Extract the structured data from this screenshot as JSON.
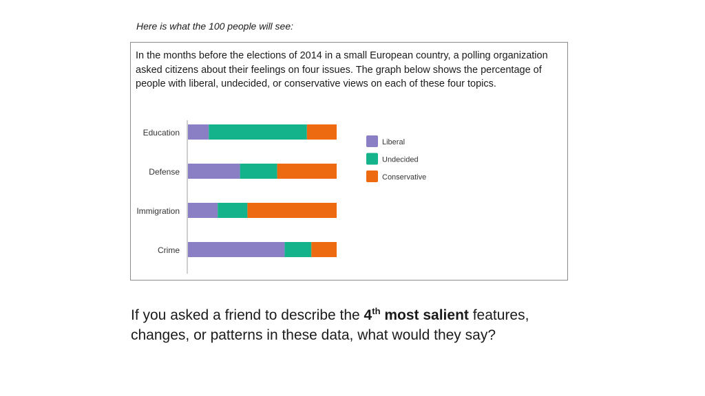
{
  "intro_text": "Here is what the 100 people will see:",
  "description": "In the months before the elections of 2014 in a small European country, a polling organization asked citizens about their feelings on four issues. The graph below shows the percentage of people with liberal, undecided, or conservative views on each of these four topics.",
  "question": {
    "prefix": "If you asked a friend to describe the ",
    "ordinal": "4",
    "ordinal_sup": "th",
    "emphasis": " most salient",
    "suffix": " features, changes, or patterns in these data, what would they say?"
  },
  "colors": {
    "liberal": "#8a7fc4",
    "undecided": "#14b38b",
    "conservative": "#ee6a10"
  },
  "chart_data": {
    "type": "bar",
    "orientation": "horizontal",
    "stacked": true,
    "categories": [
      "Education",
      "Defense",
      "Immigration",
      "Crime"
    ],
    "series": [
      {
        "name": "Liberal",
        "color": "#8a7fc4",
        "values": [
          14,
          35,
          20,
          65
        ]
      },
      {
        "name": "Undecided",
        "color": "#14b38b",
        "values": [
          66,
          25,
          20,
          18
        ]
      },
      {
        "name": "Conservative",
        "color": "#ee6a10",
        "values": [
          20,
          40,
          60,
          17
        ]
      }
    ],
    "xlim": [
      0,
      100
    ],
    "grid": false,
    "legend_position": "right"
  }
}
